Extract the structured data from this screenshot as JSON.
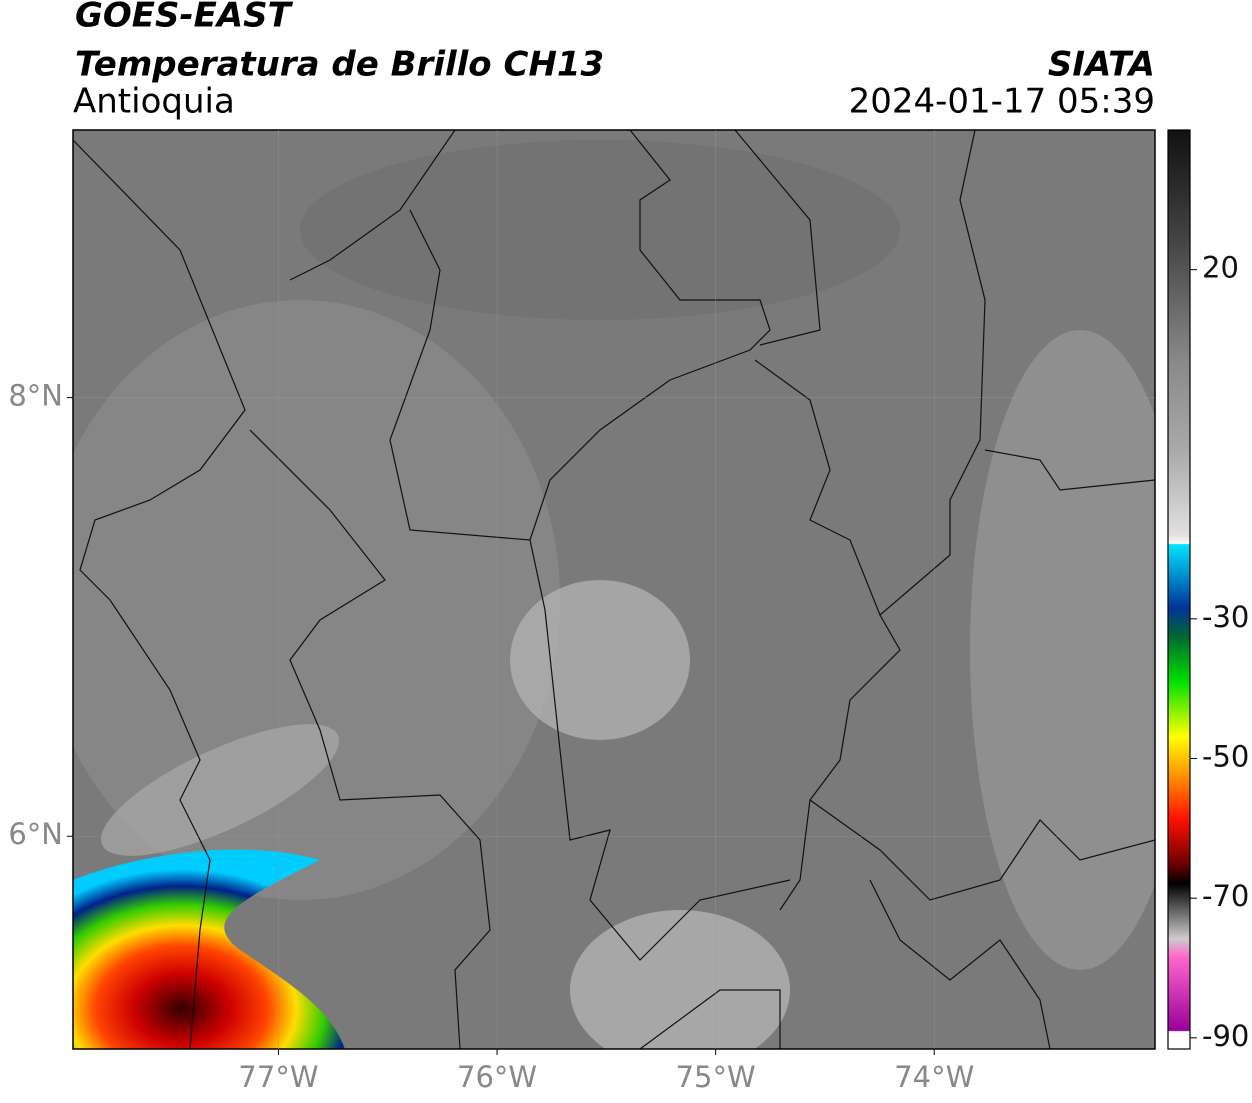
{
  "header": {
    "title": "GOES-EAST",
    "subtitle": "Temperatura de Brillo CH13",
    "region": "Antioquia",
    "source": "SIATA",
    "timestamp": "2024-01-17 05:39"
  },
  "map": {
    "lonlim": [
      -77.94,
      -72.99
    ],
    "latlim": [
      5.03,
      9.22
    ],
    "lon_ticks": [
      {
        "value": -77,
        "label": "77°W"
      },
      {
        "value": -76,
        "label": "76°W"
      },
      {
        "value": -75,
        "label": "75°W"
      },
      {
        "value": -74,
        "label": "74°W"
      }
    ],
    "lat_ticks": [
      {
        "value": 8,
        "label": "8°N"
      },
      {
        "value": 6,
        "label": "6°N"
      }
    ]
  },
  "colorbar": {
    "lim": [
      -91.6,
      40
    ],
    "ticks": [
      20,
      -30,
      -50,
      -70,
      -90
    ]
  }
}
